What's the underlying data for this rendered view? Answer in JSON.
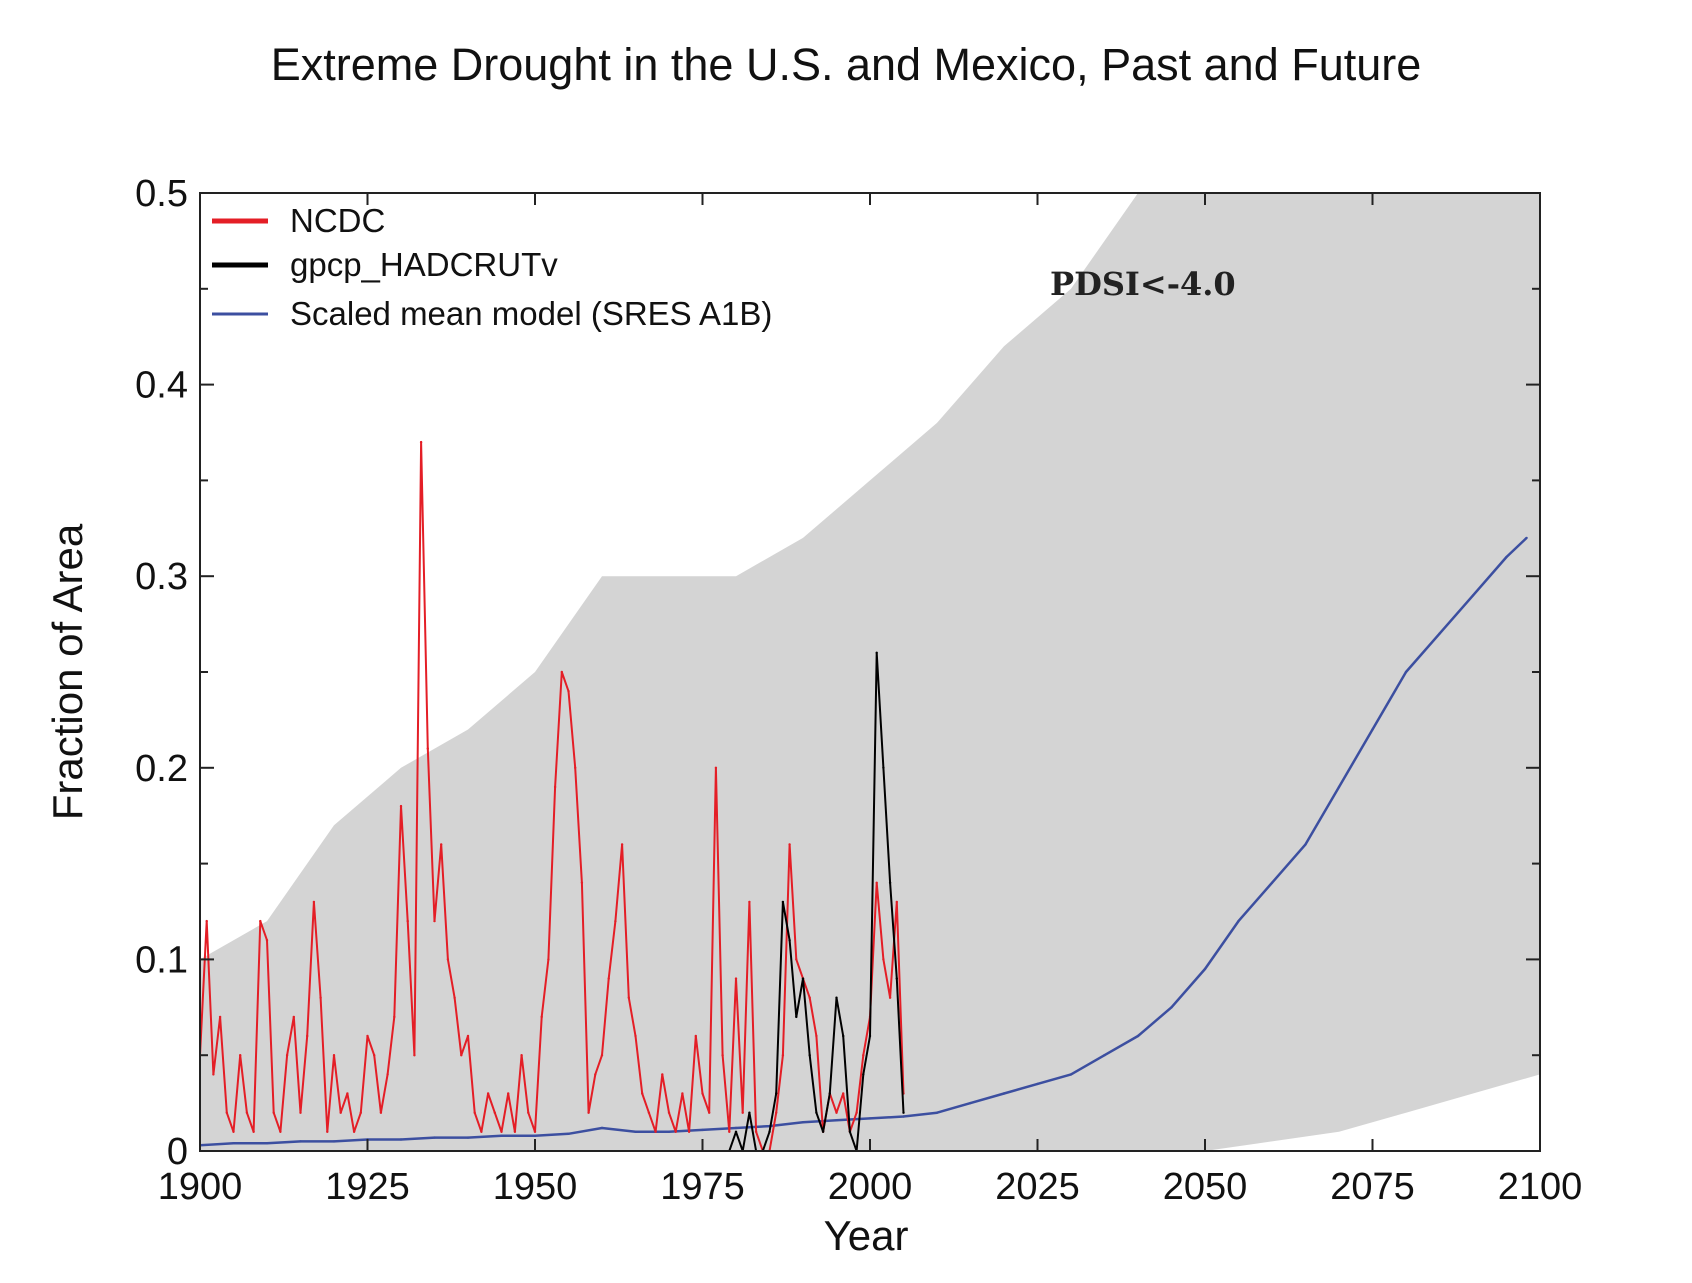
{
  "chart_data": {
    "type": "line",
    "title": "Extreme Drought in the U.S. and Mexico, Past and Future",
    "xlabel": "Year",
    "ylabel": "Fraction of Area",
    "xlim": [
      1900,
      2100
    ],
    "ylim": [
      0,
      0.5
    ],
    "xticks": [
      1900,
      1925,
      1950,
      1975,
      2000,
      2025,
      2050,
      2075,
      2100
    ],
    "yticks": [
      0,
      0.1,
      0.2,
      0.3,
      0.4,
      0.5
    ],
    "ytick_labels": [
      "0",
      "0.1",
      "0.2",
      "0.3",
      "0.4",
      "0.5"
    ],
    "grid": false,
    "legend_position": "top-left",
    "annotation": "PDSI<-4.0",
    "colors": {
      "ncdc": "#e41e26",
      "gpcp": "#000000",
      "model": "#3c4fa0",
      "envelope": "#d4d4d4"
    },
    "series": [
      {
        "name": "NCDC",
        "color": "#e41e26",
        "x": [
          1900,
          1901,
          1902,
          1903,
          1904,
          1905,
          1906,
          1907,
          1908,
          1909,
          1910,
          1911,
          1912,
          1913,
          1914,
          1915,
          1916,
          1917,
          1918,
          1919,
          1920,
          1921,
          1922,
          1923,
          1924,
          1925,
          1926,
          1927,
          1928,
          1929,
          1930,
          1931,
          1932,
          1933,
          1934,
          1935,
          1936,
          1937,
          1938,
          1939,
          1940,
          1941,
          1942,
          1943,
          1944,
          1945,
          1946,
          1947,
          1948,
          1949,
          1950,
          1951,
          1952,
          1953,
          1954,
          1955,
          1956,
          1957,
          1958,
          1959,
          1960,
          1961,
          1962,
          1963,
          1964,
          1965,
          1966,
          1967,
          1968,
          1969,
          1970,
          1971,
          1972,
          1973,
          1974,
          1975,
          1976,
          1977,
          1978,
          1979,
          1980,
          1981,
          1982,
          1983,
          1984,
          1985,
          1986,
          1987,
          1988,
          1989,
          1990,
          1991,
          1992,
          1993,
          1994,
          1995,
          1996,
          1997,
          1998,
          1999,
          2000,
          2001,
          2002,
          2003,
          2004,
          2005
        ],
        "values": [
          0.05,
          0.12,
          0.04,
          0.07,
          0.02,
          0.01,
          0.05,
          0.02,
          0.01,
          0.12,
          0.11,
          0.02,
          0.01,
          0.05,
          0.07,
          0.02,
          0.06,
          0.13,
          0.08,
          0.01,
          0.05,
          0.02,
          0.03,
          0.01,
          0.02,
          0.06,
          0.05,
          0.02,
          0.04,
          0.07,
          0.18,
          0.12,
          0.05,
          0.37,
          0.21,
          0.12,
          0.16,
          0.1,
          0.08,
          0.05,
          0.06,
          0.02,
          0.01,
          0.03,
          0.02,
          0.01,
          0.03,
          0.01,
          0.05,
          0.02,
          0.01,
          0.07,
          0.1,
          0.19,
          0.25,
          0.24,
          0.2,
          0.14,
          0.02,
          0.04,
          0.05,
          0.09,
          0.12,
          0.16,
          0.08,
          0.06,
          0.03,
          0.02,
          0.01,
          0.04,
          0.02,
          0.01,
          0.03,
          0.01,
          0.06,
          0.03,
          0.02,
          0.2,
          0.05,
          0.01,
          0.09,
          0.02,
          0.13,
          0.01,
          0.0,
          0.0,
          0.02,
          0.05,
          0.16,
          0.1,
          0.09,
          0.08,
          0.06,
          0.01,
          0.03,
          0.02,
          0.03,
          0.01,
          0.02,
          0.05,
          0.07,
          0.14,
          0.1,
          0.08,
          0.13,
          0.03
        ]
      },
      {
        "name": "gpcp_HADCRUTv",
        "color": "#000000",
        "x": [
          1979,
          1980,
          1981,
          1982,
          1983,
          1984,
          1985,
          1986,
          1987,
          1988,
          1989,
          1990,
          1991,
          1992,
          1993,
          1994,
          1995,
          1996,
          1997,
          1998,
          1999,
          2000,
          2001,
          2002,
          2003,
          2004,
          2005
        ],
        "values": [
          0.0,
          0.01,
          0.0,
          0.02,
          0.0,
          0.0,
          0.01,
          0.03,
          0.13,
          0.11,
          0.07,
          0.09,
          0.05,
          0.02,
          0.01,
          0.03,
          0.08,
          0.06,
          0.01,
          0.0,
          0.04,
          0.06,
          0.26,
          0.2,
          0.14,
          0.09,
          0.02
        ]
      },
      {
        "name": "Scaled mean model (SRES A1B)",
        "color": "#3c4fa0",
        "x": [
          1900,
          1905,
          1910,
          1915,
          1920,
          1925,
          1930,
          1935,
          1940,
          1945,
          1950,
          1955,
          1960,
          1965,
          1970,
          1975,
          1980,
          1985,
          1990,
          1995,
          2000,
          2005,
          2010,
          2015,
          2020,
          2025,
          2030,
          2035,
          2040,
          2045,
          2050,
          2055,
          2060,
          2065,
          2070,
          2075,
          2080,
          2085,
          2090,
          2095,
          2098
        ],
        "values": [
          0.003,
          0.004,
          0.004,
          0.005,
          0.005,
          0.006,
          0.006,
          0.007,
          0.007,
          0.008,
          0.008,
          0.009,
          0.012,
          0.01,
          0.01,
          0.011,
          0.012,
          0.013,
          0.015,
          0.016,
          0.017,
          0.018,
          0.02,
          0.025,
          0.03,
          0.035,
          0.04,
          0.05,
          0.06,
          0.075,
          0.095,
          0.12,
          0.14,
          0.16,
          0.19,
          0.22,
          0.25,
          0.27,
          0.29,
          0.31,
          0.32
        ]
      }
    ],
    "envelope": {
      "x": [
        1900,
        1910,
        1920,
        1930,
        1940,
        1950,
        1960,
        1970,
        1980,
        1990,
        2000,
        2010,
        2020,
        2030,
        2040,
        2050,
        2060,
        2070,
        2080,
        2090,
        2100
      ],
      "lower": [
        0,
        0,
        0,
        0,
        0,
        0,
        0,
        0,
        0,
        0,
        0,
        0,
        0,
        0,
        0,
        0,
        0.005,
        0.01,
        0.02,
        0.03,
        0.04
      ],
      "upper": [
        0.1,
        0.12,
        0.17,
        0.2,
        0.22,
        0.25,
        0.3,
        0.3,
        0.3,
        0.32,
        0.35,
        0.38,
        0.42,
        0.45,
        0.5,
        0.5,
        0.5,
        0.5,
        0.5,
        0.5,
        0.5
      ]
    }
  }
}
